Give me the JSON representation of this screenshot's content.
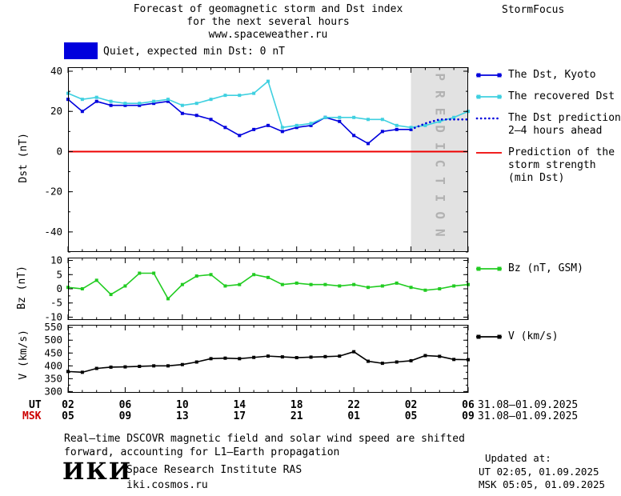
{
  "header": {
    "title_line1": "Forecast of geomagnetic storm and Dst index",
    "title_line2": "for the next several hours",
    "title_line3": "www.spaceweather.ru",
    "brand": "StormFocus"
  },
  "status_banner": {
    "label": "Quiet, expected min Dst: 0 nT",
    "swatch_color": "#0000dd"
  },
  "chart_data": [
    {
      "type": "line",
      "name": "dst-panel",
      "ylabel": "Dst (nT)",
      "ylim": [
        -50,
        42
      ],
      "yticks": [
        40,
        20,
        0,
        -20,
        -40
      ],
      "yminor_step": 10,
      "xlim_hours": [
        2,
        30
      ],
      "xtick_step_hours": 4,
      "refline": {
        "y": 0,
        "color": "#ee0000",
        "meaning": "Prediction of the storm strength (min Dst)"
      },
      "prediction_band": {
        "from_hour": 26,
        "to_hour": 30,
        "fill": "#e2e2e2",
        "label": "PREDICTION",
        "label_color": "#b2b2b2"
      },
      "series": [
        {
          "name": "The Dst, Kyoto",
          "color": "#0000dd",
          "style": "solid",
          "marker": true,
          "x": [
            2,
            3,
            4,
            5,
            6,
            7,
            8,
            9,
            10,
            11,
            12,
            13,
            14,
            15,
            16,
            17,
            18,
            19,
            20,
            21,
            22,
            23,
            24,
            25,
            26
          ],
          "values": [
            26,
            20,
            25,
            23,
            23,
            23,
            24,
            25,
            19,
            18,
            16,
            12,
            8,
            11,
            13,
            10,
            12,
            13,
            17,
            15,
            8,
            4,
            10,
            11,
            11
          ]
        },
        {
          "name": "The recovered Dst",
          "color": "#3fd0e0",
          "style": "solid",
          "marker": true,
          "x": [
            2,
            3,
            4,
            5,
            6,
            7,
            8,
            9,
            10,
            11,
            12,
            13,
            14,
            15,
            16,
            17,
            18,
            19,
            20,
            21,
            22,
            23,
            24,
            25,
            26,
            27,
            28,
            29,
            30
          ],
          "values": [
            29,
            26,
            27,
            25,
            24,
            24,
            25,
            26,
            23,
            24,
            26,
            28,
            28,
            29,
            35,
            12,
            13,
            14,
            17,
            17,
            17,
            16,
            16,
            13,
            12,
            13,
            15,
            17,
            20
          ]
        },
        {
          "name": "The Dst prediction 2–4 hours ahead",
          "color": "#0000dd",
          "style": "dotted",
          "marker": false,
          "x": [
            26,
            27,
            28,
            29,
            30
          ],
          "values": [
            11,
            14,
            16,
            16,
            16
          ]
        }
      ]
    },
    {
      "type": "line",
      "name": "bz-panel",
      "ylabel": "Bz (nT)",
      "ylim": [
        -11,
        11
      ],
      "yticks": [
        10,
        5,
        0,
        -5,
        -10
      ],
      "yminor_step": 2.5,
      "xlim_hours": [
        2,
        30
      ],
      "xtick_step_hours": 4,
      "series": [
        {
          "name": "Bz (nT, GSM)",
          "color": "#22cc22",
          "style": "solid",
          "marker": true,
          "x": [
            2,
            3,
            4,
            5,
            6,
            7,
            8,
            9,
            10,
            11,
            12,
            13,
            14,
            15,
            16,
            17,
            18,
            19,
            20,
            21,
            22,
            23,
            24,
            25,
            26,
            27,
            28,
            29,
            30
          ],
          "values": [
            0.5,
            0,
            3,
            -2,
            1,
            5.5,
            5.5,
            -3.5,
            1.5,
            4.5,
            5,
            1,
            1.5,
            5,
            4,
            1.5,
            2,
            1.5,
            1.5,
            1,
            1.5,
            0.5,
            1,
            2,
            0.5,
            -0.5,
            0,
            1,
            1.5
          ]
        }
      ]
    },
    {
      "type": "line",
      "name": "v-panel",
      "ylabel": "V (km/s)",
      "ylim": [
        295,
        560
      ],
      "yticks": [
        550,
        500,
        450,
        400,
        350,
        300
      ],
      "yminor_step": 25,
      "xlim_hours": [
        2,
        30
      ],
      "xtick_step_hours": 4,
      "series": [
        {
          "name": "V (km/s)",
          "color": "#000000",
          "style": "solid",
          "marker": true,
          "x": [
            2,
            3,
            4,
            5,
            6,
            7,
            8,
            9,
            10,
            11,
            12,
            13,
            14,
            15,
            16,
            17,
            18,
            19,
            20,
            21,
            22,
            23,
            24,
            25,
            26,
            27,
            28,
            29,
            30
          ],
          "values": [
            378,
            375,
            390,
            395,
            396,
            398,
            400,
            400,
            405,
            415,
            428,
            430,
            428,
            433,
            438,
            435,
            432,
            434,
            436,
            438,
            455,
            418,
            410,
            415,
            420,
            440,
            437,
            425,
            424
          ]
        }
      ]
    }
  ],
  "xaxis": {
    "ut_label": "UT",
    "msk_label": "MSK",
    "msk_color": "#cc0000",
    "ut_ticks": [
      "02",
      "06",
      "10",
      "14",
      "18",
      "22",
      "02",
      "06"
    ],
    "msk_ticks": [
      "05",
      "09",
      "13",
      "17",
      "21",
      "01",
      "05",
      "09"
    ],
    "ut_date": "31.08–01.09.2025",
    "msk_date": "31.08–01.09.2025"
  },
  "legend": {
    "dst": [
      {
        "label_lines": [
          "The Dst, Kyoto"
        ],
        "color": "#0000dd",
        "style": "solid-markers"
      },
      {
        "label_lines": [
          "The recovered Dst"
        ],
        "color": "#3fd0e0",
        "style": "solid-markers"
      },
      {
        "label_lines": [
          "The Dst prediction",
          "2–4 hours ahead"
        ],
        "color": "#0000dd",
        "style": "dotted"
      },
      {
        "label_lines": [
          "Prediction of the",
          "storm strength",
          "(min Dst)"
        ],
        "color": "#ee0000",
        "style": "solid"
      }
    ],
    "bz": [
      {
        "label_lines": [
          "Bz (nT, GSM)"
        ],
        "color": "#22cc22",
        "style": "solid-markers"
      }
    ],
    "v": [
      {
        "label_lines": [
          "V (km/s)"
        ],
        "color": "#000000",
        "style": "solid-markers"
      }
    ]
  },
  "footnote": {
    "line1": "Real–time DSCOVR magnetic field and solar wind speed are shifted",
    "line2": "forward, accounting for L1–Earth propagation"
  },
  "footer": {
    "logo": "ИКИ",
    "institute": "Space Research Institute RAS",
    "site": "iki.cosmos.ru",
    "updated_label": "Updated at:",
    "updated_ut": "UT  02:05, 01.09.2025",
    "updated_msk": "MSK 05:05, 01.09.2025"
  }
}
